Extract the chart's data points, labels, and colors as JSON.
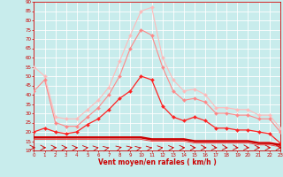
{
  "background_color": "#c8ecec",
  "grid_color": "#ffffff",
  "xlabel": "Vent moyen/en rafales ( km/h )",
  "xlabel_color": "#cc0000",
  "tick_color": "#cc0000",
  "xmin": 0,
  "xmax": 23,
  "ymin": 10,
  "ymax": 90,
  "yticks": [
    10,
    15,
    20,
    25,
    30,
    35,
    40,
    45,
    50,
    55,
    60,
    65,
    70,
    75,
    80,
    85,
    90
  ],
  "xticks": [
    0,
    1,
    2,
    3,
    4,
    5,
    6,
    7,
    8,
    9,
    10,
    11,
    12,
    13,
    14,
    15,
    16,
    17,
    18,
    19,
    20,
    21,
    22,
    23
  ],
  "series": [
    {
      "label": "line1_light_pink",
      "x": [
        0,
        1,
        2,
        3,
        4,
        5,
        6,
        7,
        8,
        9,
        10,
        11,
        12,
        13,
        14,
        15,
        16,
        17,
        18,
        19,
        20,
        21,
        22,
        23
      ],
      "y": [
        55,
        50,
        28,
        27,
        27,
        32,
        37,
        44,
        58,
        72,
        85,
        87,
        60,
        48,
        42,
        43,
        40,
        33,
        33,
        32,
        32,
        29,
        29,
        22
      ],
      "color": "#ffbbbb",
      "linewidth": 0.8,
      "marker": "D",
      "markersize": 2.0
    },
    {
      "label": "line2_medium_pink",
      "x": [
        0,
        1,
        2,
        3,
        4,
        5,
        6,
        7,
        8,
        9,
        10,
        11,
        12,
        13,
        14,
        15,
        16,
        17,
        18,
        19,
        20,
        21,
        22,
        23
      ],
      "y": [
        42,
        48,
        25,
        23,
        23,
        28,
        33,
        40,
        50,
        65,
        75,
        72,
        55,
        42,
        37,
        38,
        36,
        30,
        30,
        29,
        29,
        27,
        27,
        20
      ],
      "color": "#ff8888",
      "linewidth": 0.8,
      "marker": "D",
      "markersize": 2.0
    },
    {
      "label": "line3_red_main",
      "x": [
        0,
        1,
        2,
        3,
        4,
        5,
        6,
        7,
        8,
        9,
        10,
        11,
        12,
        13,
        14,
        15,
        16,
        17,
        18,
        19,
        20,
        21,
        22,
        23
      ],
      "y": [
        20,
        22,
        20,
        19,
        20,
        24,
        27,
        32,
        38,
        42,
        50,
        48,
        34,
        28,
        26,
        28,
        26,
        22,
        22,
        21,
        21,
        20,
        19,
        14
      ],
      "color": "#ff2222",
      "linewidth": 0.9,
      "marker": "D",
      "markersize": 2.0
    },
    {
      "label": "line4_dark_flat",
      "x": [
        0,
        1,
        2,
        3,
        4,
        5,
        6,
        7,
        8,
        9,
        10,
        11,
        12,
        13,
        14,
        15,
        16,
        17,
        18,
        19,
        20,
        21,
        22,
        23
      ],
      "y": [
        17,
        17,
        17,
        17,
        17,
        17,
        17,
        17,
        17,
        17,
        17,
        16,
        16,
        16,
        16,
        15,
        15,
        15,
        15,
        15,
        15,
        14,
        14,
        13
      ],
      "color": "#cc0000",
      "linewidth": 1.8,
      "marker": null,
      "markersize": 0
    },
    {
      "label": "line5_thin_flat",
      "x": [
        0,
        1,
        2,
        3,
        4,
        5,
        6,
        7,
        8,
        9,
        10,
        11,
        12,
        13,
        14,
        15,
        16,
        17,
        18,
        19,
        20,
        21,
        22,
        23
      ],
      "y": [
        16,
        16,
        16,
        16,
        16,
        16,
        16,
        16,
        16,
        16,
        16,
        15,
        15,
        15,
        15,
        14,
        14,
        14,
        14,
        14,
        14,
        13,
        13,
        12
      ],
      "color": "#ee4444",
      "linewidth": 0.7,
      "marker": null,
      "markersize": 0
    }
  ],
  "arrows": {
    "y": 11.5,
    "color": "#cc0000",
    "angles_deg": [
      0,
      0,
      5,
      10,
      20,
      30,
      40,
      50,
      55,
      55,
      50,
      45,
      35,
      25,
      15,
      5,
      -5,
      -15,
      -20,
      -20,
      -15,
      -5,
      0,
      -5
    ]
  }
}
